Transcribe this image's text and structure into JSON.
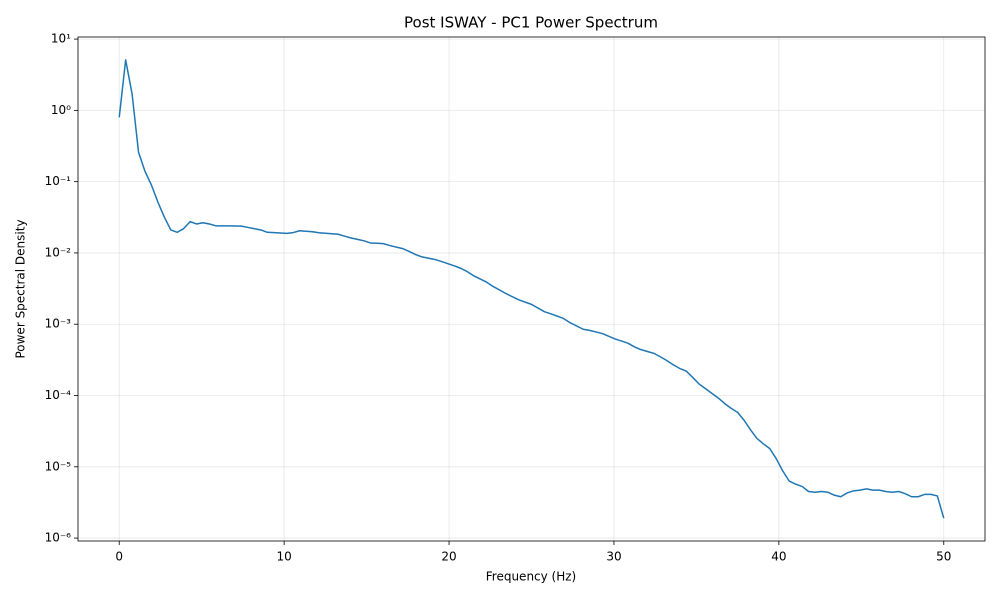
{
  "chart_data": {
    "type": "line",
    "title": "Post ISWAY - PC1 Power Spectrum",
    "x_label": "Frequency (Hz)",
    "y_label": "Power Spectral Density",
    "y_scale": "log",
    "grid": true,
    "x": [
      0,
      0.39,
      0.78,
      1.17,
      1.56,
      1.95,
      2.34,
      2.73,
      3.13,
      3.52,
      3.91,
      4.3,
      4.69,
      5.08,
      5.47,
      5.86,
      6.64,
      7.42,
      7.81,
      8.59,
      8.98,
      10.16,
      10.55,
      10.94,
      11.72,
      12.11,
      13.28,
      13.67,
      14.06,
      14.45,
      14.84,
      15.23,
      15.63,
      16.02,
      16.41,
      17.19,
      17.58,
      17.97,
      18.36,
      19.14,
      19.53,
      20.31,
      20.7,
      21.09,
      21.48,
      22.27,
      22.66,
      23.44,
      24.22,
      25,
      25.78,
      26.17,
      26.56,
      26.95,
      27.34,
      28.13,
      28.52,
      28.91,
      29.3,
      30.08,
      30.47,
      30.86,
      31.25,
      31.64,
      32.42,
      32.81,
      33.2,
      33.59,
      33.98,
      34.38,
      34.77,
      35.16,
      35.55,
      36.33,
      36.72,
      37.11,
      37.5,
      37.89,
      38.28,
      38.67,
      39.06,
      39.45,
      39.84,
      40.23,
      40.63,
      41.02,
      41.41,
      41.8,
      42.19,
      42.58,
      42.97,
      43.36,
      43.75,
      44.14,
      44.53,
      44.92,
      45.31,
      45.7,
      46.09,
      46.48,
      46.88,
      47.27,
      47.66,
      48.05,
      48.44,
      48.83,
      49.22,
      49.61,
      50
    ],
    "series": [
      {
        "name": "PC1",
        "color": "#1f77b4",
        "values": [
          0.8,
          5.1,
          1.7,
          0.26,
          0.14,
          0.09,
          0.052,
          0.032,
          0.021,
          0.0195,
          0.022,
          0.0275,
          0.0255,
          0.0265,
          0.0255,
          0.024,
          0.024,
          0.0238,
          0.0228,
          0.021,
          0.0195,
          0.0188,
          0.0193,
          0.0205,
          0.0198,
          0.0192,
          0.0183,
          0.0172,
          0.0162,
          0.0155,
          0.0148,
          0.0138,
          0.0137,
          0.0135,
          0.0127,
          0.0115,
          0.0105,
          0.0095,
          0.0088,
          0.0081,
          0.0076,
          0.0066,
          0.0061,
          0.0055,
          0.0048,
          0.0039,
          0.0034,
          0.0027,
          0.0022,
          0.0019,
          0.0015,
          0.0014,
          0.0013,
          0.0012,
          0.00105,
          0.00085,
          0.00082,
          0.00078,
          0.00074,
          0.00062,
          0.00058,
          0.00054,
          0.00048,
          0.00044,
          0.00039,
          0.00035,
          0.00031,
          0.00027,
          0.00024,
          0.00022,
          0.00018,
          0.000145,
          0.000125,
          9.2e-05,
          7.7e-05,
          6.6e-05,
          5.8e-05,
          4.5e-05,
          3.3e-05,
          2.5e-05,
          2.1e-05,
          1.8e-05,
          1.3e-05,
          8.8e-06,
          6.3e-06,
          5.7e-06,
          5.3e-06,
          4.5e-06,
          4.4e-06,
          4.5e-06,
          4.4e-06,
          4e-06,
          3.8e-06,
          4.3e-06,
          4.6e-06,
          4.7e-06,
          4.9e-06,
          4.7e-06,
          4.7e-06,
          4.5e-06,
          4.4e-06,
          4.5e-06,
          4.2e-06,
          3.8e-06,
          3.8e-06,
          4.1e-06,
          4.1e-06,
          3.9e-06,
          1.9e-06
        ]
      }
    ],
    "xlim": [
      -2.5,
      52.5
    ],
    "xticks": [
      0,
      10,
      20,
      30,
      40,
      50
    ],
    "ylim": [
      9.1e-07,
      10.7
    ],
    "yticks": [
      {
        "value": 10,
        "label": "10¹"
      },
      {
        "value": 1,
        "label": "10⁰"
      },
      {
        "value": 0.1,
        "label": "10⁻¹"
      },
      {
        "value": 0.01,
        "label": "10⁻²"
      },
      {
        "value": 0.001,
        "label": "10⁻³"
      },
      {
        "value": 0.0001,
        "label": "10⁻⁴"
      },
      {
        "value": 1e-05,
        "label": "10⁻⁵"
      },
      {
        "value": 1e-06,
        "label": "10⁻⁶"
      }
    ]
  }
}
